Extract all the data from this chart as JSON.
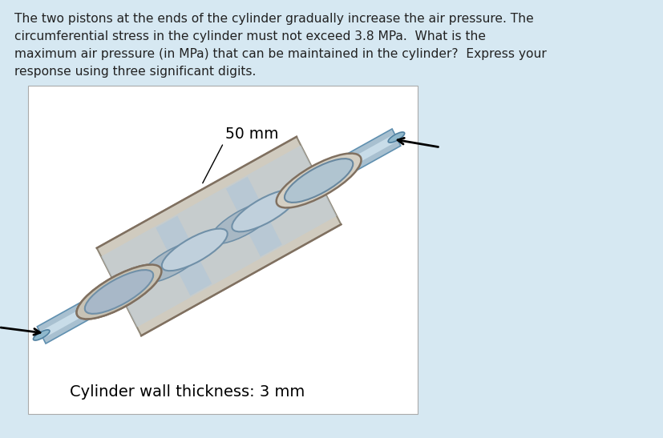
{
  "background_color": "#d6e8f2",
  "box_bg_color": "#ffffff",
  "text_lines": [
    "The two pistons at the ends of the cylinder gradually increase the air pressure. The",
    "circumferential stress in the cylinder must not exceed 3.8 MPa.  What is the",
    "maximum air pressure (in MPa) that can be maintained in the cylinder?  Express your",
    "response using three significant digits."
  ],
  "label_50mm": "50 mm",
  "label_wall": "Cylinder wall thickness: 3 mm",
  "text_color": "#222222",
  "cyl_outer_color": "#cdc8bc",
  "cyl_outer_edge": "#888880",
  "cyl_inner_color": "#b8ccd8",
  "rod_color_light": "#b8ccd8",
  "rod_color_dark": "#7095a8",
  "rod_edge": "#5080a0",
  "piston_face_color": "#b0c4d0",
  "piston_edge_color": "#708898"
}
